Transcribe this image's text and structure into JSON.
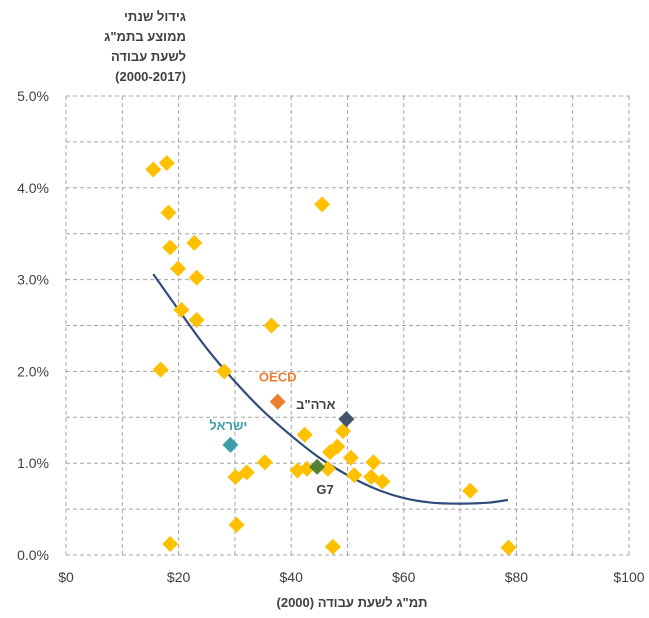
{
  "chart_data": {
    "type": "scatter",
    "ylabel_lines": [
      "גידול שנתי",
      "ממוצע בתמ\"ג",
      "לשעת עבודה",
      "(2000-2017)"
    ],
    "xlabel": "תמ\"ג לשעת עבודה (2000)",
    "xlim": [
      0,
      100
    ],
    "ylim": [
      0,
      5
    ],
    "x_ticks": [
      0,
      20,
      40,
      60,
      80,
      100
    ],
    "x_tick_labels": [
      "$0",
      "$20",
      "$40",
      "$60",
      "$80",
      "$100"
    ],
    "y_ticks": [
      0,
      1,
      2,
      3,
      4,
      5
    ],
    "y_tick_labels": [
      "0.0%",
      "1.0%",
      "2.0%",
      "3.0%",
      "4.0%",
      "5.0%"
    ],
    "grid": "dashed",
    "x_units": "USD per hour",
    "y_units": "percent",
    "points": [
      {
        "x": 15.5,
        "y": 4.2
      },
      {
        "x": 17.9,
        "y": 4.27
      },
      {
        "x": 18.2,
        "y": 3.73
      },
      {
        "x": 18.5,
        "y": 3.35
      },
      {
        "x": 22.8,
        "y": 3.4
      },
      {
        "x": 19.9,
        "y": 3.12
      },
      {
        "x": 23.2,
        "y": 3.02
      },
      {
        "x": 20.5,
        "y": 2.67
      },
      {
        "x": 23.2,
        "y": 2.56
      },
      {
        "x": 16.8,
        "y": 2.02
      },
      {
        "x": 28.1,
        "y": 2.0
      },
      {
        "x": 36.5,
        "y": 2.5
      },
      {
        "x": 45.5,
        "y": 3.82
      },
      {
        "x": 18.5,
        "y": 0.12
      },
      {
        "x": 30.3,
        "y": 0.33
      },
      {
        "x": 30.1,
        "y": 0.85
      },
      {
        "x": 32.1,
        "y": 0.9
      },
      {
        "x": 35.3,
        "y": 1.01
      },
      {
        "x": 41.1,
        "y": 0.92
      },
      {
        "x": 42.4,
        "y": 1.31
      },
      {
        "x": 42.8,
        "y": 0.94
      },
      {
        "x": 46.5,
        "y": 0.94
      },
      {
        "x": 46.9,
        "y": 1.12
      },
      {
        "x": 48.2,
        "y": 1.18
      },
      {
        "x": 49.2,
        "y": 1.35
      },
      {
        "x": 50.6,
        "y": 1.06
      },
      {
        "x": 51.2,
        "y": 0.87
      },
      {
        "x": 54.2,
        "y": 0.85
      },
      {
        "x": 54.6,
        "y": 1.01
      },
      {
        "x": 56.2,
        "y": 0.8
      },
      {
        "x": 47.4,
        "y": 0.09
      },
      {
        "x": 71.8,
        "y": 0.7
      },
      {
        "x": 78.6,
        "y": 0.08
      }
    ],
    "highlighted": [
      {
        "label": "OECD",
        "x": 37.6,
        "y": 1.67,
        "color": "#ed7d31",
        "label_color": "#ed7d31"
      },
      {
        "label": "ארה\"ב",
        "x": 49.8,
        "y": 1.48,
        "color": "#44546a",
        "label_color": "#404040"
      },
      {
        "label": "ישראל",
        "x": 29.2,
        "y": 1.2,
        "color": "#3c9eaa",
        "label_color": "#3c9eaa"
      },
      {
        "label": "G7",
        "x": 44.6,
        "y": 0.96,
        "color": "#548235",
        "label_color": "#404040"
      }
    ],
    "trendline": {
      "type": "polynomial",
      "color": "#2f4c7a",
      "x": [
        15.5,
        20,
        25,
        30,
        35,
        40,
        45,
        50,
        55,
        60,
        65,
        70,
        75,
        78.5
      ],
      "y": [
        3.06,
        2.67,
        2.25,
        1.89,
        1.57,
        1.3,
        1.06,
        0.87,
        0.72,
        0.62,
        0.57,
        0.56,
        0.57,
        0.6
      ]
    },
    "colors": {
      "points": "#ffc000",
      "grid": "#a6a6a6",
      "text": "#404040"
    }
  }
}
